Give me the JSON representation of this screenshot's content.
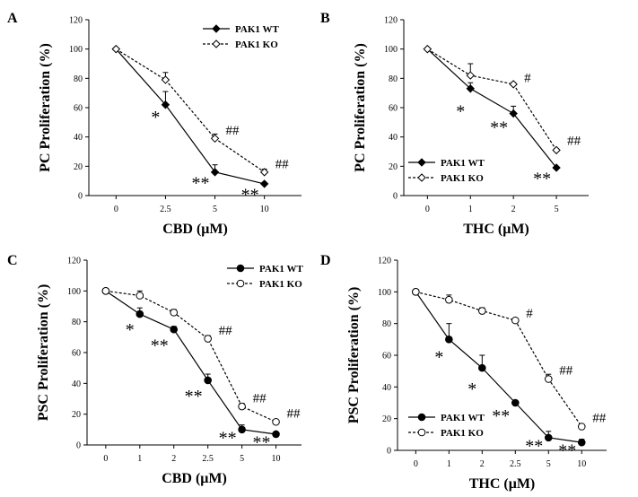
{
  "chart_data": [
    {
      "panel": "A",
      "type": "line",
      "categories": [
        "0",
        "2.5",
        "5",
        "10"
      ],
      "xlabel": "CBD (μM)",
      "ylabel": "PC Proliferation (%)",
      "ylim": [
        0,
        120
      ],
      "yticks": [
        0,
        20,
        40,
        60,
        80,
        100,
        120
      ],
      "legend_position": "top-right",
      "series": [
        {
          "name": "PAK1 WT",
          "style": "solid",
          "marker": "diamond-filled",
          "values": [
            100,
            62,
            16,
            8
          ],
          "errors": [
            0,
            9,
            5,
            1
          ]
        },
        {
          "name": "PAK1 KO",
          "style": "dashed",
          "marker": "diamond-open",
          "values": [
            100,
            79,
            39,
            16
          ],
          "errors": [
            0,
            5,
            3,
            2
          ]
        }
      ],
      "annotations": [
        {
          "text": "*",
          "category": "2.5",
          "y": 57
        },
        {
          "text": "**",
          "category": "5",
          "y": 12
        },
        {
          "text": "##",
          "category": "5",
          "y": 44
        },
        {
          "text": "**",
          "category": "10",
          "y": 4
        },
        {
          "text": "##",
          "category": "10",
          "y": 21
        }
      ]
    },
    {
      "panel": "B",
      "type": "line",
      "categories": [
        "0",
        "1",
        "2",
        "5"
      ],
      "xlabel": "THC (μM)",
      "ylabel": "PC Proliferation (%)",
      "ylim": [
        0,
        120
      ],
      "yticks": [
        0,
        20,
        40,
        60,
        80,
        100,
        120
      ],
      "legend_position": "bottom-left",
      "series": [
        {
          "name": "PAK1 WT",
          "style": "solid",
          "marker": "diamond-filled",
          "values": [
            100,
            73,
            56,
            19
          ],
          "errors": [
            0,
            4,
            5,
            1
          ]
        },
        {
          "name": "PAK1 KO",
          "style": "dashed",
          "marker": "diamond-open",
          "values": [
            100,
            82,
            76,
            31
          ],
          "errors": [
            0,
            8,
            1,
            1
          ]
        }
      ],
      "annotations": [
        {
          "text": "*",
          "category": "1",
          "y": 61
        },
        {
          "text": "**",
          "category": "2",
          "y": 50
        },
        {
          "text": "#",
          "category": "2",
          "y": 80
        },
        {
          "text": "**",
          "category": "5",
          "y": 15
        },
        {
          "text": "##",
          "category": "5",
          "y": 37
        }
      ]
    },
    {
      "panel": "C",
      "type": "line",
      "categories": [
        "0",
        "1",
        "2",
        "2.5",
        "5",
        "10"
      ],
      "xlabel": "CBD (μM)",
      "ylabel": "PSC Proliferation (%)",
      "ylim": [
        0,
        120
      ],
      "yticks": [
        0,
        20,
        40,
        60,
        80,
        100,
        120
      ],
      "legend_position": "top-right",
      "series": [
        {
          "name": "PAK1 WT",
          "style": "solid",
          "marker": "circle-filled",
          "values": [
            100,
            85,
            75,
            42,
            10,
            7
          ],
          "errors": [
            0,
            4,
            2,
            4,
            3,
            1
          ]
        },
        {
          "name": "PAK1 KO",
          "style": "dashed",
          "marker": "circle-open",
          "values": [
            100,
            97,
            86,
            69,
            25,
            15
          ],
          "errors": [
            0,
            3,
            2,
            2,
            2,
            1
          ]
        }
      ],
      "annotations": [
        {
          "text": "*",
          "category": "1",
          "y": 78
        },
        {
          "text": "**",
          "category": "2",
          "y": 68
        },
        {
          "text": "##",
          "category": "2.5",
          "y": 74
        },
        {
          "text": "**",
          "category": "2.5",
          "y": 35
        },
        {
          "text": "##",
          "category": "5",
          "y": 30
        },
        {
          "text": "**",
          "category": "5",
          "y": 8
        },
        {
          "text": "##",
          "category": "10",
          "y": 20
        },
        {
          "text": "**",
          "category": "10",
          "y": 5
        }
      ]
    },
    {
      "panel": "D",
      "type": "line",
      "categories": [
        "0",
        "1",
        "2",
        "2.5",
        "5",
        "10"
      ],
      "xlabel": "THC (μM)",
      "ylabel": "PSC Proliferation (%)",
      "ylim": [
        0,
        120
      ],
      "yticks": [
        0,
        20,
        40,
        60,
        80,
        100,
        120
      ],
      "legend_position": "bottom-left",
      "series": [
        {
          "name": "PAK1 WT",
          "style": "solid",
          "marker": "circle-filled",
          "values": [
            100,
            70,
            52,
            30,
            8,
            5
          ],
          "errors": [
            0,
            10,
            8,
            1,
            4,
            2
          ]
        },
        {
          "name": "PAK1 KO",
          "style": "dashed",
          "marker": "circle-open",
          "values": [
            100,
            95,
            88,
            82,
            45,
            15
          ],
          "errors": [
            0,
            3,
            2,
            1,
            3,
            1
          ]
        }
      ],
      "annotations": [
        {
          "text": "*",
          "category": "1",
          "y": 62
        },
        {
          "text": "*",
          "category": "2",
          "y": 42
        },
        {
          "text": "#",
          "category": "2.5",
          "y": 86
        },
        {
          "text": "**",
          "category": "2.5",
          "y": 25
        },
        {
          "text": "##",
          "category": "5",
          "y": 50
        },
        {
          "text": "**",
          "category": "5",
          "y": 6
        },
        {
          "text": "##",
          "category": "10",
          "y": 20
        },
        {
          "text": "**",
          "category": "10",
          "y": 3
        }
      ]
    }
  ]
}
